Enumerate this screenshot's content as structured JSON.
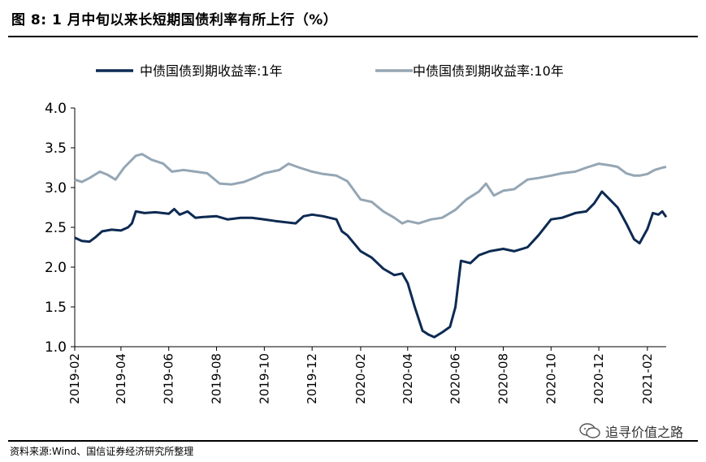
{
  "header": {
    "title": "图 8:  1 月中旬以来长短期国债利率有所上行（%）"
  },
  "footer": {
    "source": "资料来源:Wind、国信证券经济研究所整理",
    "watermark": "追寻价值之路",
    "watermark_icon": "wechat-icon"
  },
  "chart_data": {
    "type": "line",
    "title": "",
    "xlabel": "",
    "ylabel": "",
    "ylim": [
      1.0,
      4.0
    ],
    "yticks": [
      "4.0",
      "3.5",
      "3.0",
      "2.5",
      "2.0",
      "1.5",
      "1.0"
    ],
    "xticks": [
      "2019-02",
      "2019-04",
      "2019-06",
      "2019-08",
      "2019-10",
      "2019-12",
      "2020-02",
      "2020-04",
      "2020-06",
      "2020-08",
      "2020-10",
      "2020-12",
      "2021-02"
    ],
    "xrange": [
      "2019-02-01",
      "2021-02-25"
    ],
    "grid": false,
    "legend_position": "top",
    "series": [
      {
        "name": "中债国债到期收益率:1年",
        "color": "#0d2a52",
        "points": [
          [
            "2019-02-01",
            2.37
          ],
          [
            "2019-02-10",
            2.33
          ],
          [
            "2019-02-20",
            2.32
          ],
          [
            "2019-02-28",
            2.38
          ],
          [
            "2019-03-08",
            2.45
          ],
          [
            "2019-03-20",
            2.47
          ],
          [
            "2019-04-01",
            2.46
          ],
          [
            "2019-04-10",
            2.5
          ],
          [
            "2019-04-15",
            2.55
          ],
          [
            "2019-04-20",
            2.7
          ],
          [
            "2019-05-01",
            2.68
          ],
          [
            "2019-05-15",
            2.69
          ],
          [
            "2019-06-01",
            2.67
          ],
          [
            "2019-06-08",
            2.73
          ],
          [
            "2019-06-15",
            2.66
          ],
          [
            "2019-06-25",
            2.7
          ],
          [
            "2019-07-05",
            2.62
          ],
          [
            "2019-07-15",
            2.63
          ],
          [
            "2019-08-01",
            2.64
          ],
          [
            "2019-08-15",
            2.6
          ],
          [
            "2019-09-01",
            2.62
          ],
          [
            "2019-09-15",
            2.62
          ],
          [
            "2019-10-01",
            2.6
          ],
          [
            "2019-10-15",
            2.58
          ],
          [
            "2019-11-01",
            2.56
          ],
          [
            "2019-11-10",
            2.55
          ],
          [
            "2019-11-20",
            2.64
          ],
          [
            "2019-12-01",
            2.66
          ],
          [
            "2019-12-15",
            2.64
          ],
          [
            "2020-01-01",
            2.6
          ],
          [
            "2020-01-08",
            2.45
          ],
          [
            "2020-01-15",
            2.4
          ],
          [
            "2020-02-01",
            2.2
          ],
          [
            "2020-02-15",
            2.12
          ],
          [
            "2020-03-01",
            1.98
          ],
          [
            "2020-03-15",
            1.9
          ],
          [
            "2020-03-25",
            1.92
          ],
          [
            "2020-04-01",
            1.8
          ],
          [
            "2020-04-10",
            1.5
          ],
          [
            "2020-04-20",
            1.2
          ],
          [
            "2020-04-28",
            1.15
          ],
          [
            "2020-05-05",
            1.12
          ],
          [
            "2020-05-15",
            1.18
          ],
          [
            "2020-05-25",
            1.25
          ],
          [
            "2020-06-01",
            1.5
          ],
          [
            "2020-06-08",
            2.08
          ],
          [
            "2020-06-20",
            2.05
          ],
          [
            "2020-07-01",
            2.15
          ],
          [
            "2020-07-15",
            2.2
          ],
          [
            "2020-08-01",
            2.23
          ],
          [
            "2020-08-15",
            2.2
          ],
          [
            "2020-09-01",
            2.25
          ],
          [
            "2020-09-15",
            2.4
          ],
          [
            "2020-10-01",
            2.6
          ],
          [
            "2020-10-15",
            2.62
          ],
          [
            "2020-11-01",
            2.68
          ],
          [
            "2020-11-15",
            2.7
          ],
          [
            "2020-11-25",
            2.8
          ],
          [
            "2020-12-05",
            2.95
          ],
          [
            "2020-12-15",
            2.85
          ],
          [
            "2020-12-25",
            2.75
          ],
          [
            "2021-01-05",
            2.55
          ],
          [
            "2021-01-15",
            2.35
          ],
          [
            "2021-01-22",
            2.3
          ],
          [
            "2021-02-01",
            2.48
          ],
          [
            "2021-02-08",
            2.68
          ],
          [
            "2021-02-15",
            2.66
          ],
          [
            "2021-02-20",
            2.7
          ],
          [
            "2021-02-25",
            2.63
          ]
        ]
      },
      {
        "name": "中债国债到期收益率:10年",
        "color": "#95a6b4",
        "points": [
          [
            "2019-02-01",
            3.1
          ],
          [
            "2019-02-10",
            3.07
          ],
          [
            "2019-02-20",
            3.12
          ],
          [
            "2019-03-05",
            3.2
          ],
          [
            "2019-03-15",
            3.16
          ],
          [
            "2019-03-25",
            3.1
          ],
          [
            "2019-04-05",
            3.25
          ],
          [
            "2019-04-20",
            3.4
          ],
          [
            "2019-04-28",
            3.42
          ],
          [
            "2019-05-10",
            3.35
          ],
          [
            "2019-05-25",
            3.3
          ],
          [
            "2019-06-05",
            3.2
          ],
          [
            "2019-06-20",
            3.22
          ],
          [
            "2019-07-05",
            3.2
          ],
          [
            "2019-07-20",
            3.18
          ],
          [
            "2019-08-05",
            3.05
          ],
          [
            "2019-08-20",
            3.04
          ],
          [
            "2019-09-05",
            3.07
          ],
          [
            "2019-09-20",
            3.13
          ],
          [
            "2019-10-01",
            3.18
          ],
          [
            "2019-10-20",
            3.22
          ],
          [
            "2019-11-01",
            3.3
          ],
          [
            "2019-11-15",
            3.25
          ],
          [
            "2019-12-01",
            3.2
          ],
          [
            "2019-12-15",
            3.17
          ],
          [
            "2020-01-01",
            3.15
          ],
          [
            "2020-01-15",
            3.08
          ],
          [
            "2020-02-01",
            2.85
          ],
          [
            "2020-02-15",
            2.82
          ],
          [
            "2020-03-01",
            2.7
          ],
          [
            "2020-03-15",
            2.62
          ],
          [
            "2020-03-25",
            2.55
          ],
          [
            "2020-04-01",
            2.58
          ],
          [
            "2020-04-15",
            2.55
          ],
          [
            "2020-05-01",
            2.6
          ],
          [
            "2020-05-15",
            2.62
          ],
          [
            "2020-06-01",
            2.72
          ],
          [
            "2020-06-15",
            2.85
          ],
          [
            "2020-07-01",
            2.95
          ],
          [
            "2020-07-10",
            3.05
          ],
          [
            "2020-07-20",
            2.9
          ],
          [
            "2020-08-01",
            2.96
          ],
          [
            "2020-08-15",
            2.98
          ],
          [
            "2020-09-01",
            3.1
          ],
          [
            "2020-09-15",
            3.12
          ],
          [
            "2020-10-01",
            3.15
          ],
          [
            "2020-10-15",
            3.18
          ],
          [
            "2020-11-01",
            3.2
          ],
          [
            "2020-11-15",
            3.25
          ],
          [
            "2020-12-01",
            3.3
          ],
          [
            "2020-12-15",
            3.28
          ],
          [
            "2020-12-25",
            3.26
          ],
          [
            "2021-01-05",
            3.18
          ],
          [
            "2021-01-15",
            3.15
          ],
          [
            "2021-01-22",
            3.15
          ],
          [
            "2021-02-01",
            3.17
          ],
          [
            "2021-02-10",
            3.22
          ],
          [
            "2021-02-20",
            3.25
          ],
          [
            "2021-02-25",
            3.26
          ]
        ]
      }
    ]
  }
}
